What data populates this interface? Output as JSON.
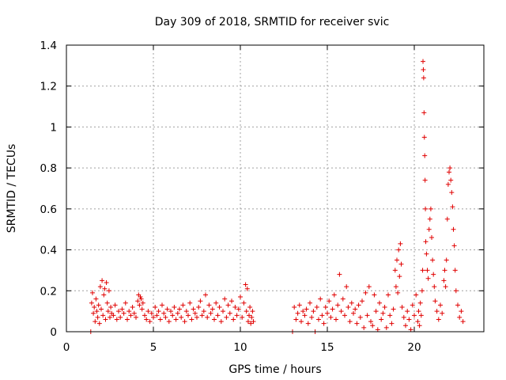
{
  "chart_data": {
    "type": "scatter",
    "title": "Day 309 of 2018, SRMTID for receiver svic",
    "xlabel": "GPS time / hours",
    "ylabel": "SRMTID / TECUs",
    "xlim": [
      0,
      24
    ],
    "ylim": [
      0,
      1.4
    ],
    "xticks": [
      0,
      5,
      10,
      15,
      20
    ],
    "xtick_labels": [
      "0",
      "5",
      "10",
      "15",
      "20"
    ],
    "yticks": [
      0,
      0.2,
      0.4,
      0.6,
      0.8,
      1.0,
      1.2,
      1.4
    ],
    "ytick_labels": [
      "0",
      "0.2",
      "0.4",
      "0.6",
      "0.8",
      "1",
      "1.2",
      "1.4"
    ],
    "grid": true,
    "marker": "+",
    "series": [
      {
        "name": "SRMTID",
        "color": "#e00000",
        "points": [
          [
            1.4,
            0.0
          ],
          [
            1.45,
            0.14
          ],
          [
            1.5,
            0.19
          ],
          [
            1.55,
            0.09
          ],
          [
            1.6,
            0.12
          ],
          [
            1.65,
            0.05
          ],
          [
            1.7,
            0.16
          ],
          [
            1.75,
            0.1
          ],
          [
            1.8,
            0.07
          ],
          [
            1.85,
            0.13
          ],
          [
            1.9,
            0.04
          ],
          [
            1.95,
            0.22
          ],
          [
            2.0,
            0.11
          ],
          [
            2.05,
            0.25
          ],
          [
            2.1,
            0.08
          ],
          [
            2.15,
            0.18
          ],
          [
            2.2,
            0.21
          ],
          [
            2.25,
            0.06
          ],
          [
            2.3,
            0.24
          ],
          [
            2.35,
            0.14
          ],
          [
            2.4,
            0.1
          ],
          [
            2.45,
            0.2
          ],
          [
            2.5,
            0.07
          ],
          [
            2.55,
            0.12
          ],
          [
            2.6,
            0.09
          ],
          [
            2.7,
            0.08
          ],
          [
            2.8,
            0.13
          ],
          [
            2.9,
            0.06
          ],
          [
            3.0,
            0.1
          ],
          [
            3.1,
            0.07
          ],
          [
            3.2,
            0.11
          ],
          [
            3.3,
            0.09
          ],
          [
            3.4,
            0.14
          ],
          [
            3.5,
            0.06
          ],
          [
            3.6,
            0.1
          ],
          [
            3.7,
            0.08
          ],
          [
            3.8,
            0.12
          ],
          [
            3.9,
            0.09
          ],
          [
            4.0,
            0.07
          ],
          [
            4.1,
            0.15
          ],
          [
            4.15,
            0.18
          ],
          [
            4.2,
            0.13
          ],
          [
            4.25,
            0.17
          ],
          [
            4.3,
            0.16
          ],
          [
            4.35,
            0.11
          ],
          [
            4.4,
            0.14
          ],
          [
            4.5,
            0.08
          ],
          [
            4.6,
            0.06
          ],
          [
            4.7,
            0.1
          ],
          [
            4.8,
            0.05
          ],
          [
            4.9,
            0.09
          ],
          [
            5.0,
            0.07
          ],
          [
            5.1,
            0.12
          ],
          [
            5.2,
            0.08
          ],
          [
            5.3,
            0.1
          ],
          [
            5.4,
            0.06
          ],
          [
            5.5,
            0.13
          ],
          [
            5.6,
            0.09
          ],
          [
            5.7,
            0.07
          ],
          [
            5.8,
            0.11
          ],
          [
            5.9,
            0.05
          ],
          [
            6.0,
            0.1
          ],
          [
            6.1,
            0.08
          ],
          [
            6.2,
            0.12
          ],
          [
            6.3,
            0.06
          ],
          [
            6.4,
            0.09
          ],
          [
            6.5,
            0.11
          ],
          [
            6.6,
            0.07
          ],
          [
            6.7,
            0.13
          ],
          [
            6.8,
            0.05
          ],
          [
            6.9,
            0.1
          ],
          [
            7.0,
            0.08
          ],
          [
            7.1,
            0.14
          ],
          [
            7.2,
            0.06
          ],
          [
            7.3,
            0.11
          ],
          [
            7.4,
            0.09
          ],
          [
            7.5,
            0.07
          ],
          [
            7.6,
            0.12
          ],
          [
            7.7,
            0.15
          ],
          [
            7.8,
            0.08
          ],
          [
            7.9,
            0.1
          ],
          [
            8.0,
            0.18
          ],
          [
            8.1,
            0.07
          ],
          [
            8.2,
            0.13
          ],
          [
            8.3,
            0.09
          ],
          [
            8.4,
            0.11
          ],
          [
            8.5,
            0.06
          ],
          [
            8.6,
            0.14
          ],
          [
            8.7,
            0.08
          ],
          [
            8.8,
            0.12
          ],
          [
            8.9,
            0.05
          ],
          [
            9.0,
            0.1
          ],
          [
            9.1,
            0.16
          ],
          [
            9.2,
            0.07
          ],
          [
            9.3,
            0.13
          ],
          [
            9.4,
            0.09
          ],
          [
            9.5,
            0.15
          ],
          [
            9.6,
            0.06
          ],
          [
            9.7,
            0.12
          ],
          [
            9.8,
            0.08
          ],
          [
            9.9,
            0.11
          ],
          [
            10.0,
            0.17
          ],
          [
            10.1,
            0.07
          ],
          [
            10.2,
            0.14
          ],
          [
            10.3,
            0.23
          ],
          [
            10.35,
            0.1
          ],
          [
            10.4,
            0.21
          ],
          [
            10.45,
            0.05
          ],
          [
            10.5,
            0.08
          ],
          [
            10.55,
            0.12
          ],
          [
            10.6,
            0.04
          ],
          [
            10.65,
            0.07
          ],
          [
            10.7,
            0.1
          ],
          [
            10.75,
            0.05
          ],
          [
            13.0,
            0.0
          ],
          [
            13.1,
            0.12
          ],
          [
            13.2,
            0.06
          ],
          [
            13.3,
            0.09
          ],
          [
            13.4,
            0.13
          ],
          [
            13.5,
            0.05
          ],
          [
            13.6,
            0.1
          ],
          [
            13.7,
            0.08
          ],
          [
            13.8,
            0.11
          ],
          [
            13.9,
            0.04
          ],
          [
            14.0,
            0.14
          ],
          [
            14.1,
            0.07
          ],
          [
            14.2,
            0.1
          ],
          [
            14.3,
            0.0
          ],
          [
            14.4,
            0.12
          ],
          [
            14.5,
            0.06
          ],
          [
            14.6,
            0.16
          ],
          [
            14.7,
            0.08
          ],
          [
            14.8,
            0.04
          ],
          [
            14.9,
            0.12
          ],
          [
            15.0,
            0.09
          ],
          [
            15.1,
            0.15
          ],
          [
            15.2,
            0.07
          ],
          [
            15.3,
            0.11
          ],
          [
            15.4,
            0.18
          ],
          [
            15.5,
            0.06
          ],
          [
            15.6,
            0.13
          ],
          [
            15.7,
            0.28
          ],
          [
            15.8,
            0.1
          ],
          [
            15.9,
            0.16
          ],
          [
            16.0,
            0.08
          ],
          [
            16.1,
            0.22
          ],
          [
            16.2,
            0.12
          ],
          [
            16.3,
            0.05
          ],
          [
            16.4,
            0.14
          ],
          [
            16.5,
            0.09
          ],
          [
            16.6,
            0.11
          ],
          [
            16.7,
            0.04
          ],
          [
            16.8,
            0.13
          ],
          [
            16.9,
            0.07
          ],
          [
            17.0,
            0.15
          ],
          [
            17.1,
            0.02
          ],
          [
            17.2,
            0.19
          ],
          [
            17.3,
            0.08
          ],
          [
            17.4,
            0.22
          ],
          [
            17.5,
            0.05
          ],
          [
            17.6,
            0.03
          ],
          [
            17.7,
            0.18
          ],
          [
            17.8,
            0.1
          ],
          [
            17.9,
            0.01
          ],
          [
            18.0,
            0.14
          ],
          [
            18.1,
            0.06
          ],
          [
            18.2,
            0.09
          ],
          [
            18.3,
            0.12
          ],
          [
            18.4,
            0.02
          ],
          [
            18.5,
            0.18
          ],
          [
            18.6,
            0.08
          ],
          [
            18.7,
            0.04
          ],
          [
            18.8,
            0.11
          ],
          [
            18.9,
            0.3
          ],
          [
            18.95,
            0.22
          ],
          [
            19.0,
            0.35
          ],
          [
            19.05,
            0.19
          ],
          [
            19.1,
            0.4
          ],
          [
            19.15,
            0.27
          ],
          [
            19.2,
            0.43
          ],
          [
            19.25,
            0.33
          ],
          [
            19.3,
            0.12
          ],
          [
            19.4,
            0.07
          ],
          [
            19.5,
            0.03
          ],
          [
            19.6,
            0.1
          ],
          [
            19.7,
            0.06
          ],
          [
            19.8,
            0.01
          ],
          [
            19.9,
            0.13
          ],
          [
            20.0,
            0.08
          ],
          [
            20.1,
            0.18
          ],
          [
            20.2,
            0.05
          ],
          [
            20.25,
            0.1
          ],
          [
            20.3,
            0.03
          ],
          [
            20.35,
            0.14
          ],
          [
            20.4,
            0.08
          ],
          [
            20.45,
            0.2
          ],
          [
            20.48,
            0.3
          ],
          [
            20.5,
            1.32
          ],
          [
            20.52,
            1.28
          ],
          [
            20.54,
            1.24
          ],
          [
            20.56,
            1.07
          ],
          [
            20.58,
            0.95
          ],
          [
            20.6,
            0.86
          ],
          [
            20.62,
            0.74
          ],
          [
            20.64,
            0.6
          ],
          [
            20.66,
            0.44
          ],
          [
            20.7,
            0.38
          ],
          [
            20.75,
            0.3
          ],
          [
            20.8,
            0.26
          ],
          [
            20.85,
            0.5
          ],
          [
            20.9,
            0.55
          ],
          [
            20.95,
            0.6
          ],
          [
            21.0,
            0.46
          ],
          [
            21.05,
            0.35
          ],
          [
            21.1,
            0.28
          ],
          [
            21.15,
            0.22
          ],
          [
            21.2,
            0.15
          ],
          [
            21.3,
            0.1
          ],
          [
            21.4,
            0.06
          ],
          [
            21.5,
            0.13
          ],
          [
            21.6,
            0.09
          ],
          [
            21.7,
            0.25
          ],
          [
            21.75,
            0.3
          ],
          [
            21.8,
            0.22
          ],
          [
            21.85,
            0.35
          ],
          [
            21.9,
            0.55
          ],
          [
            21.95,
            0.72
          ],
          [
            22.0,
            0.78
          ],
          [
            22.05,
            0.8
          ],
          [
            22.1,
            0.74
          ],
          [
            22.15,
            0.68
          ],
          [
            22.2,
            0.61
          ],
          [
            22.25,
            0.5
          ],
          [
            22.3,
            0.42
          ],
          [
            22.35,
            0.3
          ],
          [
            22.4,
            0.2
          ],
          [
            22.5,
            0.13
          ],
          [
            22.6,
            0.07
          ],
          [
            22.7,
            0.1
          ],
          [
            22.8,
            0.05
          ]
        ]
      }
    ]
  }
}
